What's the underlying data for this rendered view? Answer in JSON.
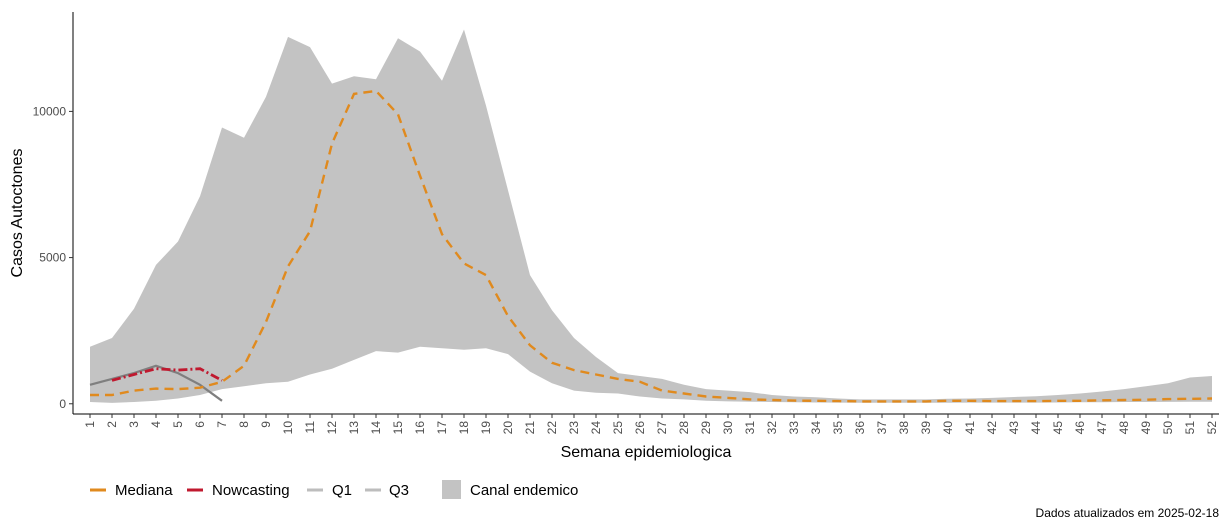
{
  "chart_data": {
    "type": "area",
    "xlabel": "Semana epidemiologica",
    "ylabel": "Casos Autoctones",
    "x": [
      1,
      2,
      3,
      4,
      5,
      6,
      7,
      8,
      9,
      10,
      11,
      12,
      13,
      14,
      15,
      16,
      17,
      18,
      19,
      20,
      21,
      22,
      23,
      24,
      25,
      26,
      27,
      28,
      29,
      30,
      31,
      32,
      33,
      34,
      35,
      36,
      37,
      38,
      39,
      40,
      41,
      42,
      43,
      44,
      45,
      46,
      47,
      48,
      49,
      50,
      51,
      52
    ],
    "ylim": [
      -350,
      13400
    ],
    "yticks": [
      0,
      5000,
      10000
    ],
    "grid": false,
    "legend_position": "bottom-left",
    "caption": "Dados atualizados em 2025-02-18",
    "colors": {
      "mediana": "#e08a1e",
      "nowcasting": "#c0192f",
      "quartile": "#bdbdbd",
      "canal": "#c3c3c3",
      "observed": "#7f7f7f"
    },
    "series": [
      {
        "name": "Mediana",
        "style": "dashed",
        "values": [
          300,
          300,
          450,
          520,
          500,
          550,
          750,
          1300,
          2800,
          4700,
          5900,
          8900,
          10600,
          10700,
          9900,
          7800,
          5800,
          4800,
          4400,
          3000,
          2000,
          1400,
          1150,
          1000,
          850,
          750,
          450,
          350,
          250,
          200,
          150,
          130,
          110,
          100,
          90,
          80,
          80,
          80,
          80,
          100,
          100,
          90,
          90,
          90,
          100,
          100,
          120,
          130,
          140,
          160,
          170,
          180
        ]
      },
      {
        "name": "Nowcasting",
        "style": "dotdash",
        "values": [
          null,
          800,
          1000,
          1200,
          1150,
          1200,
          800,
          null,
          null,
          null,
          null,
          null,
          null,
          null,
          null,
          null,
          null,
          null,
          null,
          null,
          null,
          null,
          null,
          null,
          null,
          null,
          null,
          null,
          null,
          null,
          null,
          null,
          null,
          null,
          null,
          null,
          null,
          null,
          null,
          null,
          null,
          null,
          null,
          null,
          null,
          null,
          null,
          null,
          null,
          null,
          null,
          null
        ]
      },
      {
        "name": "Q1",
        "values": [
          60,
          30,
          60,
          100,
          180,
          300,
          500,
          600,
          700,
          750,
          1000,
          1200,
          1500,
          1800,
          1750,
          1950,
          1900,
          1850,
          1900,
          1700,
          1100,
          700,
          450,
          380,
          350,
          250,
          180,
          150,
          100,
          80,
          70,
          60,
          50,
          45,
          40,
          35,
          35,
          35,
          35,
          35,
          40,
          40,
          40,
          40,
          45,
          50,
          55,
          60,
          60,
          65,
          70,
          70
        ]
      },
      {
        "name": "Q3",
        "values": [
          1950,
          2250,
          3250,
          4750,
          5550,
          7100,
          9450,
          9100,
          10500,
          12550,
          12200,
          10950,
          11200,
          11100,
          12500,
          12050,
          11050,
          12800,
          10200,
          7300,
          4400,
          3200,
          2250,
          1600,
          1050,
          950,
          850,
          650,
          500,
          450,
          400,
          300,
          250,
          220,
          180,
          150,
          150,
          150,
          150,
          170,
          180,
          200,
          230,
          260,
          300,
          350,
          420,
          500,
          600,
          700,
          900,
          950
        ]
      },
      {
        "name": "Canal endemico"
      },
      {
        "name": "observed",
        "style": "solid",
        "values": [
          650,
          850,
          1050,
          1300,
          1050,
          650,
          100,
          null,
          null,
          null,
          null,
          null,
          null,
          null,
          null,
          null,
          null,
          null,
          null,
          null,
          null,
          null,
          null,
          null,
          null,
          null,
          null,
          null,
          null,
          null,
          null,
          null,
          null,
          null,
          null,
          null,
          null,
          null,
          null,
          null,
          null,
          null,
          null,
          null,
          null,
          null,
          null,
          null,
          null,
          null,
          null,
          null
        ]
      }
    ]
  }
}
